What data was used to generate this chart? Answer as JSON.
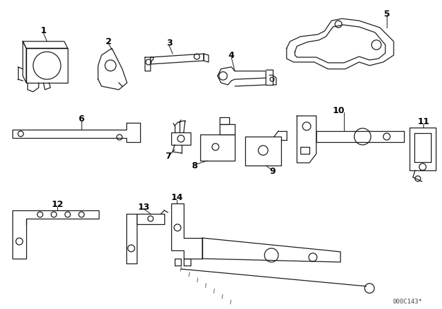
{
  "bg_color": "#ffffff",
  "line_color": "#1a1a1a",
  "watermark": "000C143*",
  "fig_width": 6.4,
  "fig_height": 4.48,
  "dpi": 100,
  "lw": 0.9
}
